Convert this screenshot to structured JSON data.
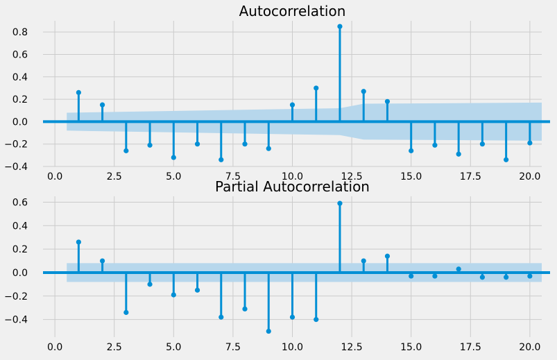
{
  "chart_data": [
    {
      "type": "stem",
      "title": "Autocorrelation",
      "xlim": [
        -0.5,
        20.5
      ],
      "ylim": [
        -0.4,
        0.9
      ],
      "xticks": [
        0.0,
        2.5,
        5.0,
        7.5,
        10.0,
        12.5,
        15.0,
        17.5,
        20.0
      ],
      "xtick_labels": [
        "0.0",
        "2.5",
        "5.0",
        "7.5",
        "10.0",
        "12.5",
        "15.0",
        "17.5",
        "20.0"
      ],
      "yticks": [
        -0.4,
        -0.2,
        0.0,
        0.2,
        0.4,
        0.6,
        0.8
      ],
      "ytick_labels": [
        "−0.4",
        "−0.2",
        "0.0",
        "0.2",
        "0.4",
        "0.6",
        "0.8"
      ],
      "lags": [
        1,
        2,
        3,
        4,
        5,
        6,
        7,
        8,
        9,
        10,
        11,
        12,
        13,
        14,
        15,
        16,
        17,
        18,
        19,
        20
      ],
      "values": [
        0.26,
        0.15,
        -0.26,
        -0.21,
        -0.32,
        -0.2,
        -0.34,
        -0.2,
        -0.24,
        0.15,
        0.3,
        0.85,
        0.27,
        0.18,
        -0.26,
        -0.21,
        -0.29,
        -0.2,
        -0.34,
        -0.19
      ],
      "confidence_band": {
        "x": [
          0.5,
          12.0,
          13.0,
          20.5
        ],
        "upper": [
          0.08,
          0.12,
          0.16,
          0.17
        ],
        "lower": [
          -0.08,
          -0.12,
          -0.16,
          -0.17
        ]
      },
      "grid": true
    },
    {
      "type": "stem",
      "title": "Partial Autocorrelation",
      "xlim": [
        -0.5,
        20.5
      ],
      "ylim": [
        -0.55,
        0.65
      ],
      "xticks": [
        0.0,
        2.5,
        5.0,
        7.5,
        10.0,
        12.5,
        15.0,
        17.5,
        20.0
      ],
      "xtick_labels": [
        "0.0",
        "2.5",
        "5.0",
        "7.5",
        "10.0",
        "12.5",
        "15.0",
        "17.5",
        "20.0"
      ],
      "yticks": [
        -0.4,
        -0.2,
        0.0,
        0.2,
        0.4,
        0.6
      ],
      "ytick_labels": [
        "−0.4",
        "−0.2",
        "0.0",
        "0.2",
        "0.4",
        "0.6"
      ],
      "lags": [
        1,
        2,
        3,
        4,
        5,
        6,
        7,
        8,
        9,
        10,
        11,
        12,
        13,
        14,
        15,
        16,
        17,
        18,
        19,
        20
      ],
      "values": [
        0.26,
        0.1,
        -0.34,
        -0.1,
        -0.19,
        -0.15,
        -0.38,
        -0.31,
        -0.5,
        -0.38,
        -0.4,
        0.59,
        0.1,
        0.14,
        -0.03,
        -0.03,
        0.03,
        -0.04,
        -0.04,
        -0.03
      ],
      "confidence_band": {
        "x": [
          0.5,
          20.5
        ],
        "upper": [
          0.08,
          0.08
        ],
        "lower": [
          -0.08,
          -0.08
        ]
      },
      "grid": true
    }
  ]
}
